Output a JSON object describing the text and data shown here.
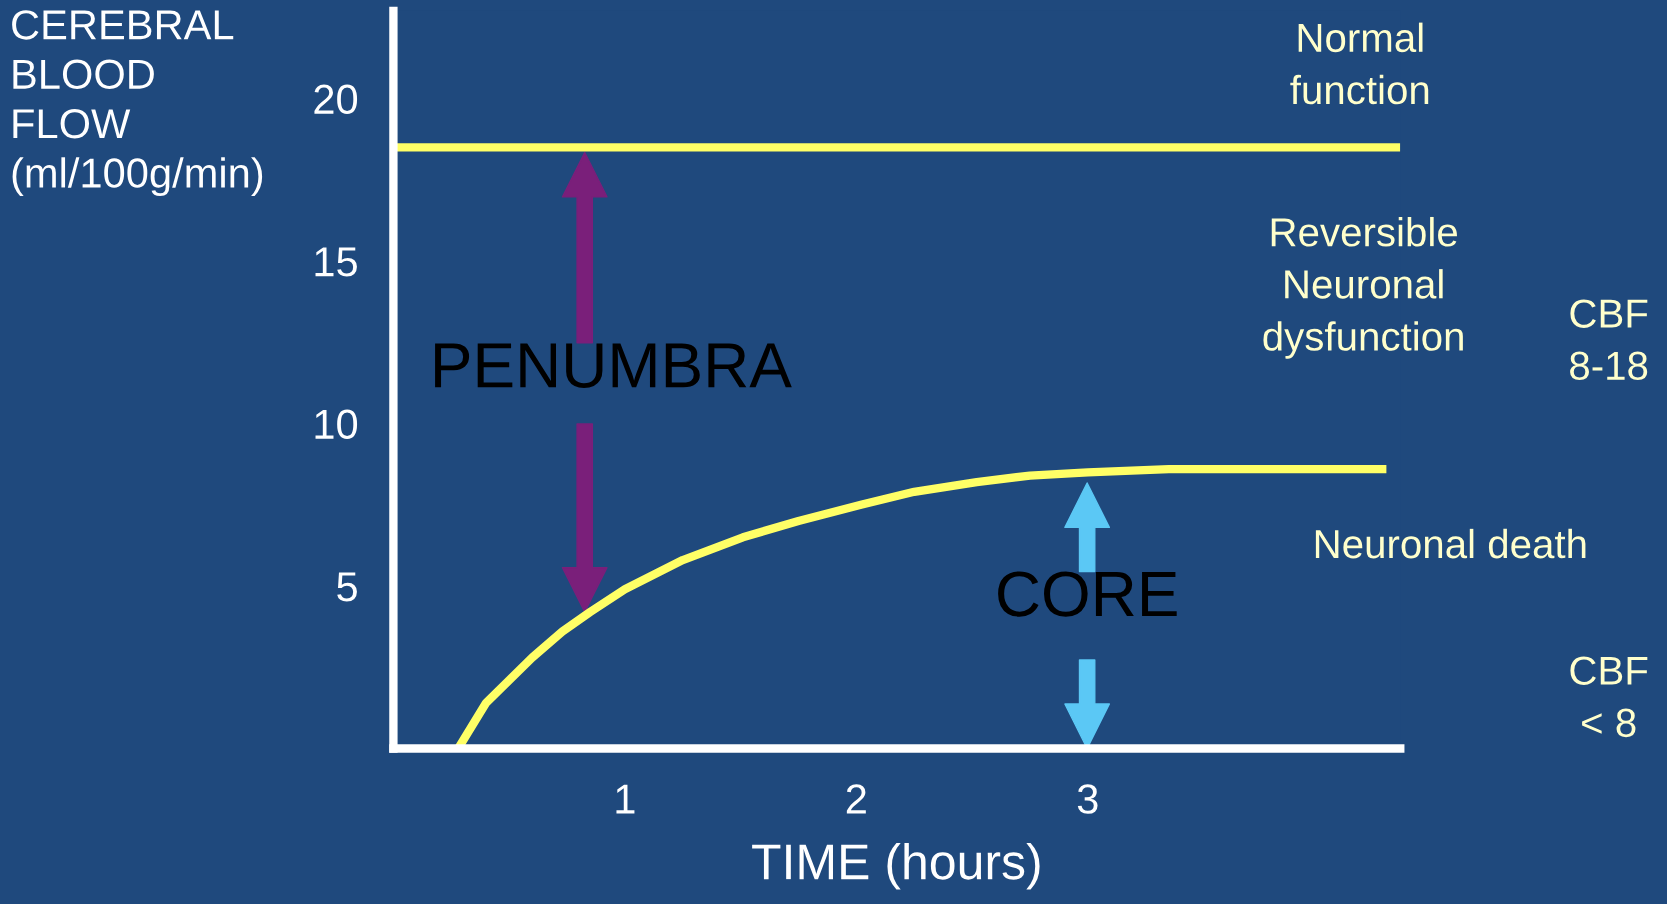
{
  "chart_data": {
    "type": "line",
    "ylabel": "CEREBRAL\nBLOOD\nFLOW\n(ml/100g/min)",
    "xlabel": "TIME (hours)",
    "xlim": [
      0,
      4.35
    ],
    "ylim": [
      0,
      22.7
    ],
    "xticks": [
      1,
      2,
      3
    ],
    "yticks": [
      5,
      10,
      15,
      20
    ],
    "grid": false,
    "legend": false,
    "marker": "none",
    "line_style": "solid",
    "series": [
      {
        "color": "#ffff66",
        "x": [
          0,
          4.35
        ],
        "values": [
          18.5,
          18.5
        ]
      },
      {
        "color": "#ffff66",
        "x": [
          0.28,
          0.4,
          0.5,
          0.6,
          0.73,
          0.85,
          1.0,
          1.25,
          1.51,
          1.75,
          2.02,
          2.25,
          2.52,
          2.75,
          3.0,
          3.35,
          3.7,
          4.29
        ],
        "values": [
          0,
          1.4,
          2.1,
          2.8,
          3.6,
          4.2,
          4.9,
          5.8,
          6.5,
          7.0,
          7.5,
          7.9,
          8.2,
          8.4,
          8.5,
          8.6,
          8.6,
          8.6
        ]
      }
    ],
    "annotations": [
      "PENUMBRA",
      "CORE",
      "Normal\nfunction",
      "Reversible\nNeuronal\ndysfunction",
      "CBF\n8-18",
      "Neuronal death",
      "CBF\n< 8"
    ]
  }
}
